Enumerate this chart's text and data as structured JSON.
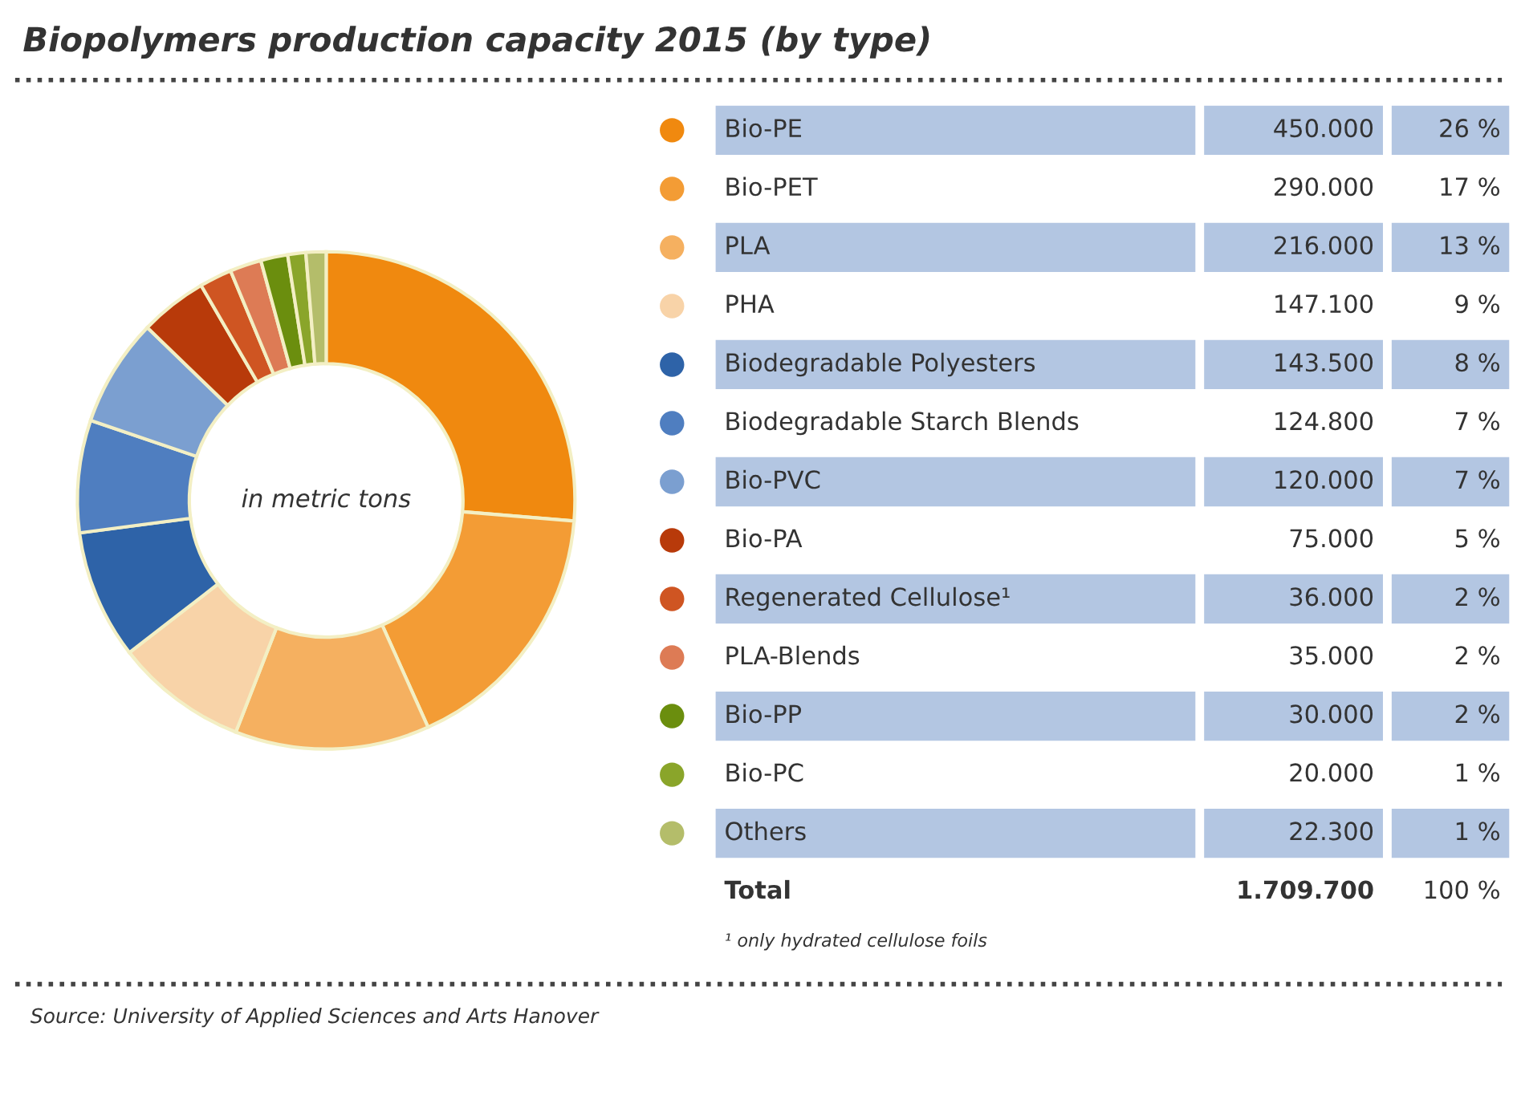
{
  "chart_data": {
    "type": "donut",
    "title": "Biopolymers production capacity 2015 (by type)",
    "categories": [
      "Bio-PE",
      "Bio-PET",
      "PLA",
      "PHA",
      "Biodegradable Polyesters",
      "Biodegradable Starch Blends",
      "Bio-PVC",
      "Bio-PA",
      "Regenerated Cellulose¹",
      "PLA-Blends",
      "Bio-PP",
      "Bio-PC",
      "Others"
    ],
    "values": [
      450000,
      290000,
      216000,
      147100,
      143500,
      124800,
      120000,
      75000,
      36000,
      35000,
      30000,
      20000,
      22300
    ],
    "value_labels": [
      "450.000",
      "290.000",
      "216.000",
      "147.100",
      "143.500",
      "124.800",
      "120.000",
      "75.000",
      "36.000",
      "35.000",
      "30.000",
      "20.000",
      "22.300"
    ],
    "colors": [
      "#f0890f",
      "#f39c35",
      "#f5b060",
      "#f8d3a8",
      "#2e63a8",
      "#4f7ec0",
      "#7b9fd0",
      "#b83a0a",
      "#cf5522",
      "#dd7b55",
      "#6b8e0e",
      "#8aa52a",
      "#b4bd6a"
    ],
    "totals": [
      "1.709.700"
    ],
    "annotations": [
      "26 %",
      "17 %",
      "13 %",
      "9 %",
      "8 %",
      "7 %",
      "7 %",
      "5 %",
      "2 %",
      "2 %",
      "2 %",
      "1 %",
      "1 %",
      "Total",
      "100 %",
      "in metric tons",
      "¹ only hydrated cellulose foils",
      "Source: University of Applied Sciences and Arts Hanover"
    ],
    "legend": "right"
  }
}
